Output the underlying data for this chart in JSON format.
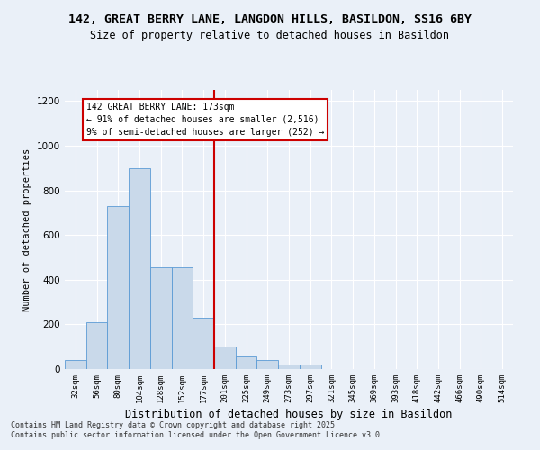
{
  "title1": "142, GREAT BERRY LANE, LANGDON HILLS, BASILDON, SS16 6BY",
  "title2": "Size of property relative to detached houses in Basildon",
  "xlabel": "Distribution of detached houses by size in Basildon",
  "ylabel": "Number of detached properties",
  "categories": [
    "32sqm",
    "56sqm",
    "80sqm",
    "104sqm",
    "128sqm",
    "152sqm",
    "177sqm",
    "201sqm",
    "225sqm",
    "249sqm",
    "273sqm",
    "297sqm",
    "321sqm",
    "345sqm",
    "369sqm",
    "393sqm",
    "418sqm",
    "442sqm",
    "466sqm",
    "490sqm",
    "514sqm"
  ],
  "bar_values": [
    40,
    210,
    730,
    900,
    455,
    455,
    230,
    100,
    55,
    40,
    20,
    20,
    0,
    0,
    0,
    0,
    0,
    0,
    0,
    0,
    0
  ],
  "bar_color": "#c9d9ea",
  "bar_edge_color": "#5b9bd5",
  "vline_x_idx": 6,
  "vline_color": "#cc0000",
  "annotation_text": "142 GREAT BERRY LANE: 173sqm\n← 91% of detached houses are smaller (2,516)\n9% of semi-detached houses are larger (252) →",
  "annotation_box_color": "#ffffff",
  "annotation_box_edge": "#cc0000",
  "ylim": [
    0,
    1250
  ],
  "yticks": [
    0,
    200,
    400,
    600,
    800,
    1000,
    1200
  ],
  "background_color": "#eaf0f8",
  "grid_color": "#ffffff",
  "footer1": "Contains HM Land Registry data © Crown copyright and database right 2025.",
  "footer2": "Contains public sector information licensed under the Open Government Licence v3.0."
}
